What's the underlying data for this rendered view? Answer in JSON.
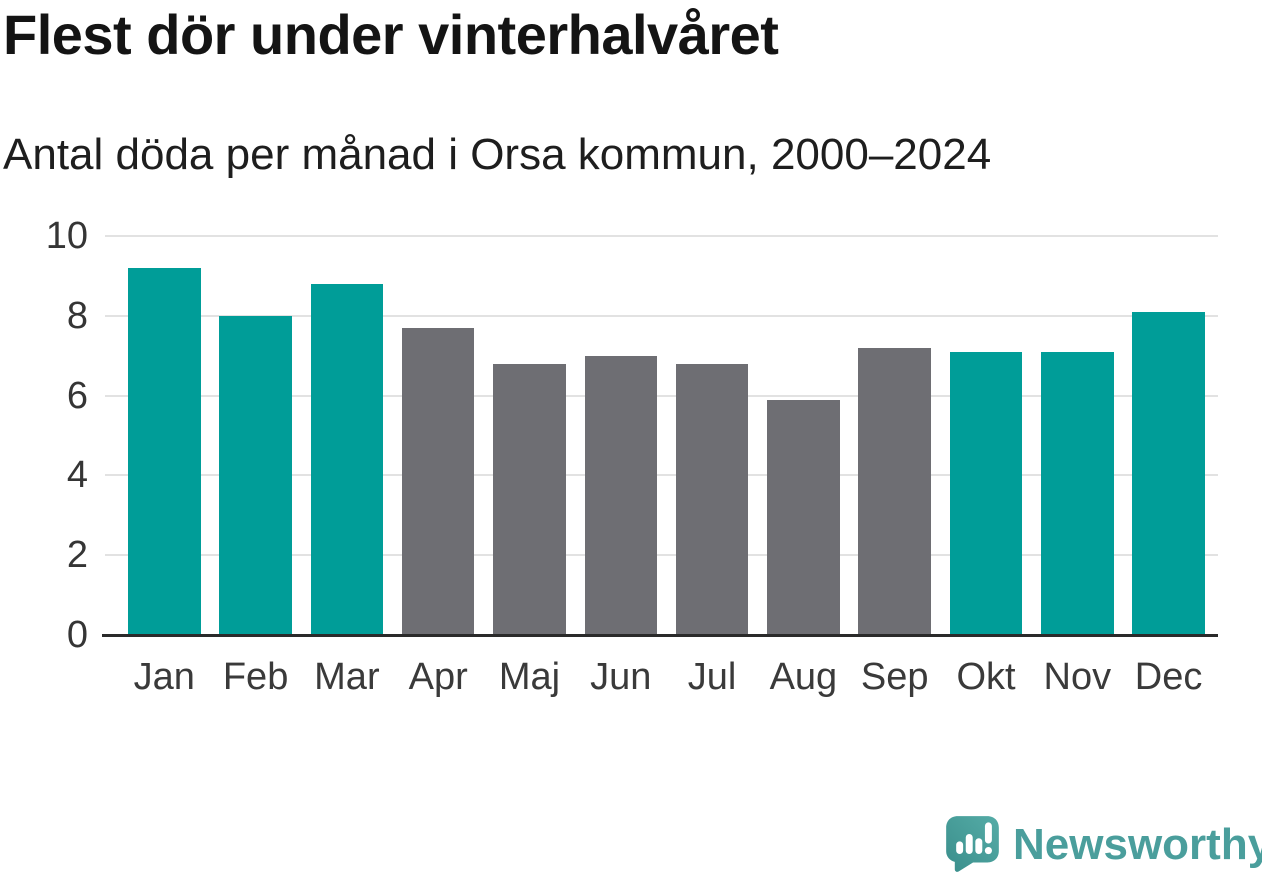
{
  "chart_data": {
    "type": "bar",
    "title": "Flest dör under vinterhalvåret",
    "subtitle": "Antal döda per månad i Orsa kommun, 2000–2024",
    "categories": [
      "Jan",
      "Feb",
      "Mar",
      "Apr",
      "Maj",
      "Jun",
      "Jul",
      "Aug",
      "Sep",
      "Okt",
      "Nov",
      "Dec"
    ],
    "values": [
      9.2,
      8.0,
      8.8,
      7.7,
      6.8,
      7.0,
      6.8,
      5.9,
      7.2,
      7.1,
      7.1,
      8.1
    ],
    "series_colors": [
      "#009d98",
      "#009d98",
      "#009d98",
      "#6e6e73",
      "#6e6e73",
      "#6e6e73",
      "#6e6e73",
      "#6e6e73",
      "#6e6e73",
      "#009d98",
      "#009d98",
      "#009d98"
    ],
    "highlight_color": "#009d98",
    "base_color": "#6e6e73",
    "xlabel": "",
    "ylabel": "",
    "ylim": [
      0,
      10
    ],
    "yticks": [
      0,
      2,
      4,
      6,
      8,
      10
    ],
    "grid": "horizontal",
    "legend": "none",
    "gridline_color": "#e2e2e2",
    "axis_color": "#2a2a2a"
  },
  "footer": {
    "brand": "Newsworthy",
    "brand_color": "#4a9e9c",
    "logo_icon": "newsworthy-speech-bubble-bar-chart"
  }
}
